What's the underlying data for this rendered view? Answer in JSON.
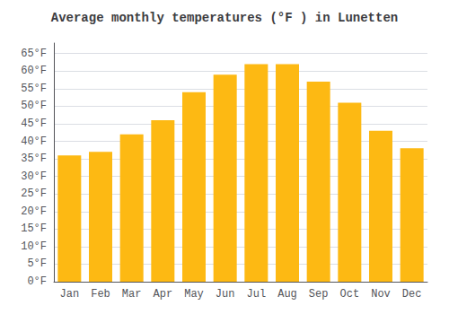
{
  "chart_data": {
    "type": "bar",
    "title": "Average monthly temperatures (°F ) in Lunetten",
    "categories": [
      "Jan",
      "Feb",
      "Mar",
      "Apr",
      "May",
      "Jun",
      "Jul",
      "Aug",
      "Sep",
      "Oct",
      "Nov",
      "Dec"
    ],
    "values": [
      36,
      37,
      42,
      46,
      54,
      59,
      62,
      62,
      57,
      51,
      43,
      38
    ],
    "color": "#FDB913",
    "ylim": [
      0,
      68
    ],
    "yticks": [
      {
        "value": 0,
        "label": "0°F"
      },
      {
        "value": 5,
        "label": "5°F"
      },
      {
        "value": 10,
        "label": "10°F"
      },
      {
        "value": 15,
        "label": "15°F"
      },
      {
        "value": 20,
        "label": "20°F"
      },
      {
        "value": 25,
        "label": "25°F"
      },
      {
        "value": 30,
        "label": "30°F"
      },
      {
        "value": 35,
        "label": "35°F"
      },
      {
        "value": 40,
        "label": "40°F"
      },
      {
        "value": 45,
        "label": "45°F"
      },
      {
        "value": 50,
        "label": "50°F"
      },
      {
        "value": 55,
        "label": "55°F"
      },
      {
        "value": 60,
        "label": "60°F"
      },
      {
        "value": 65,
        "label": "65°F"
      }
    ],
    "grid": true
  }
}
